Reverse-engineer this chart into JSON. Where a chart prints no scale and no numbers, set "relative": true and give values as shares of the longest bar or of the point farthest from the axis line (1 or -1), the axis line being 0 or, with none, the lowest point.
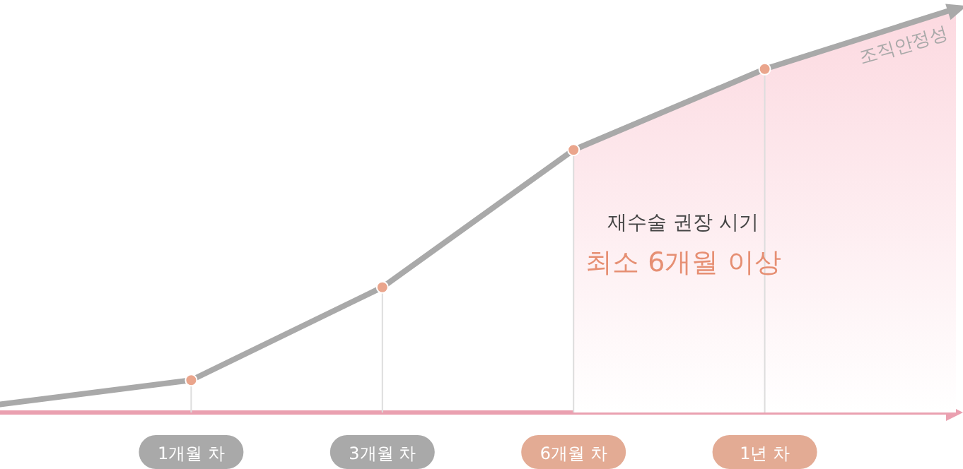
{
  "chart_data": {
    "type": "line",
    "relative": true,
    "categories": [
      null,
      "1개월 차",
      "3개월 차",
      "6개월 차",
      "1년 차",
      null
    ],
    "series": [
      {
        "type": "area",
        "color": "#fcd9e0",
        "values": [
          null,
          null,
          null,
          0.65,
          0.85,
          1
        ]
      },
      {
        "name": "조직안정성",
        "color": "#a9a9a9",
        "values": [
          0.02,
          0.08,
          0.31,
          0.65,
          0.85,
          1
        ]
      },
      {
        "type": "lollipop",
        "marker": "circle",
        "color": "#eaa58c",
        "values": [
          null,
          0.08,
          0.31,
          0.65,
          0.85,
          null
        ]
      }
    ],
    "annotations": [
      "재수술 권장 시기",
      "최소 6개월 이상"
    ]
  }
}
